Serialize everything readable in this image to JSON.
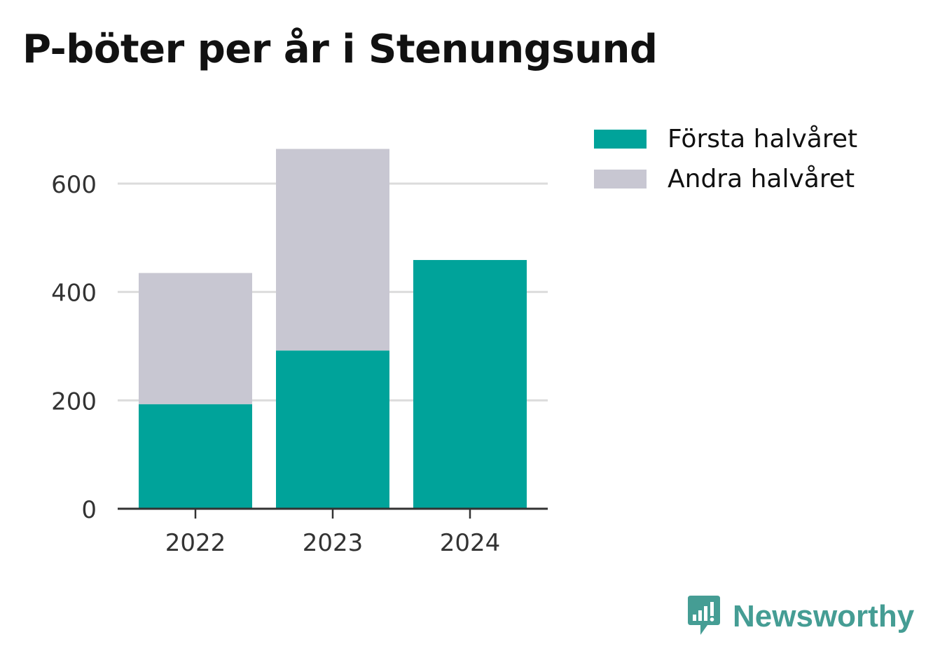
{
  "chart_data": {
    "type": "bar",
    "stacked": true,
    "title": "P-böter per år i Stenungsund",
    "categories": [
      "2022",
      "2023",
      "2024"
    ],
    "series": [
      {
        "name": "Första halvåret",
        "values": [
          193,
          292,
          459
        ],
        "color": "#00a39a"
      },
      {
        "name": "Andra halvåret",
        "values": [
          242,
          372,
          0
        ],
        "color": "#c8c7d2"
      }
    ],
    "y_ticks": [
      0,
      200,
      400,
      600
    ],
    "ylim": [
      0,
      700
    ],
    "grid": true,
    "legend_position": "right"
  },
  "brand": {
    "name": "Newsworthy",
    "color": "#459d94",
    "icon": "newsworthy-logo-icon"
  }
}
